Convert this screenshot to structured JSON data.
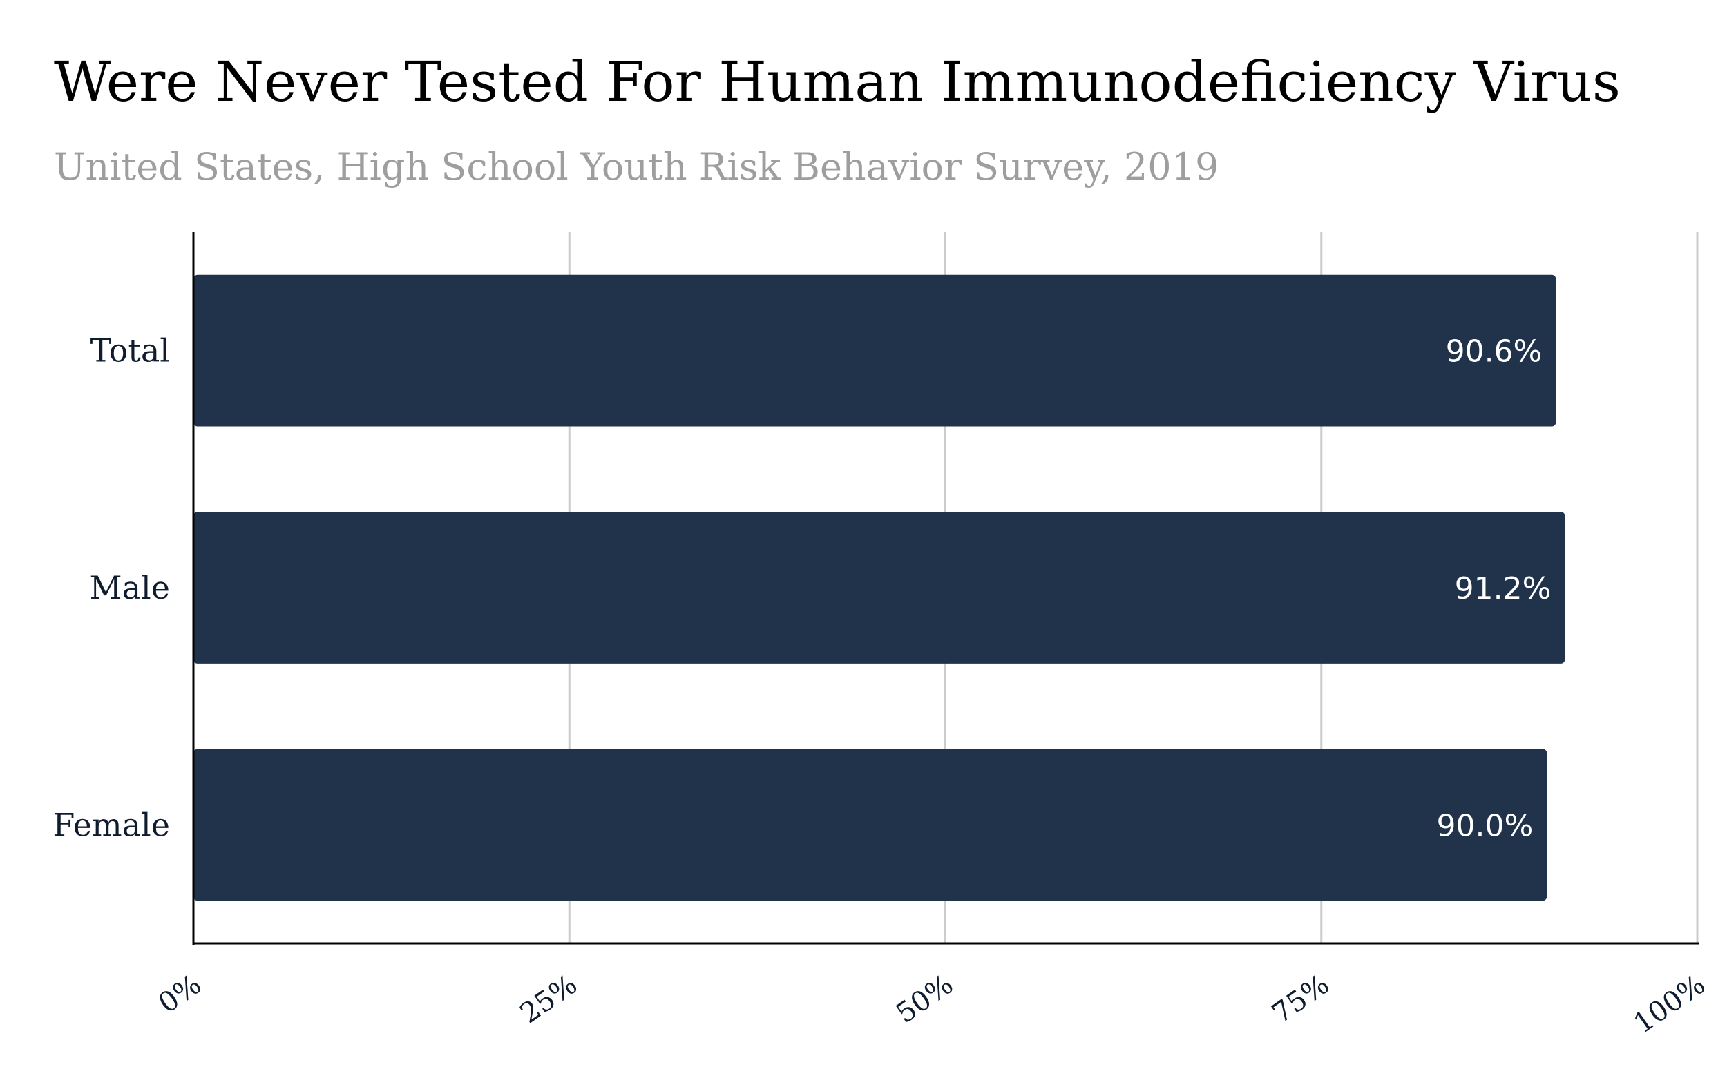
{
  "colors": {
    "bar": "#20334b",
    "grid": "#cccccc",
    "axis": "#000000",
    "subtitle": "#9e9e9e",
    "value_label": "#ffffff"
  },
  "chart_data": {
    "type": "bar",
    "orientation": "horizontal",
    "title": "Were Never Tested For Human Immunodeficiency Virus",
    "subtitle": "United States, High School Youth Risk Behavior Survey, 2019",
    "categories": [
      "Total",
      "Male",
      "Female"
    ],
    "values": [
      90.6,
      91.2,
      90.0
    ],
    "value_labels": [
      "90.6%",
      "91.2%",
      "90.0%"
    ],
    "xlim": [
      0,
      100
    ],
    "x_ticks": [
      0,
      25,
      50,
      75,
      100
    ],
    "x_tick_labels": [
      "0%",
      "25%",
      "50%",
      "75%",
      "100%"
    ],
    "grid": true,
    "legend": "none"
  }
}
